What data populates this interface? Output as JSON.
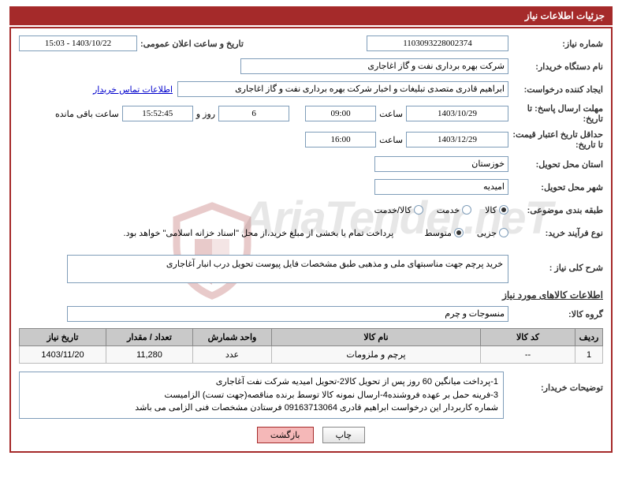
{
  "header": {
    "title": "جزئیات اطلاعات نیاز"
  },
  "labels": {
    "need_no": "شماره نیاز:",
    "announce_dt": "تاریخ و ساعت اعلان عمومی:",
    "org": "نام دستگاه خریدار:",
    "requester": "ایجاد کننده درخواست:",
    "deadline": "مهلت ارسال پاسخ: تا تاریخ:",
    "time_word": "ساعت",
    "days_and": "روز و",
    "remaining": "ساعت باقی مانده",
    "validity": "حداقل تاریخ اعتبار قیمت: تا تاریخ:",
    "province": "استان محل تحویل:",
    "city": "شهر محل تحویل:",
    "category": "طبقه بندی موضوعی:",
    "process": "نوع فرآیند خرید:",
    "need_desc": "شرح کلی نیاز :",
    "goods_group": "گروه کالا:",
    "buyer_notes": "توضیحات خریدار:",
    "contact": "اطلاعات تماس خریدار"
  },
  "fields": {
    "need_no": "1103093228002374",
    "announce_dt": "1403/10/22 - 15:03",
    "org": "شرکت بهره برداری نفت و گاز اغاجاری",
    "requester": "ابراهیم قادری متصدی تبلیغات و اخبار شرکت بهره برداری نفت و گاز اغاجاری",
    "deadline_date": "1403/10/29",
    "deadline_time": "09:00",
    "days_left": "6",
    "time_left": "15:52:45",
    "validity_date": "1403/12/29",
    "validity_time": "16:00",
    "province": "خوزستان",
    "city": "امیدیه",
    "process_note": "پرداخت تمام یا بخشی از مبلغ خرید،از محل \"اسناد خزانه اسلامی\" خواهد بود.",
    "need_desc": "خرید پرچم جهت مناسبتهای ملی  و مذهبی طبق مشخصات فایل پیوست تحویل درب انبار آغاجاری",
    "goods_group": "منسوجات و چرم",
    "buyer_notes_l1": "1-پرداخت میانگین 60 روز پس از تحویل کالا2-تحویل امیدیه شرکت نفت آغاجاری",
    "buyer_notes_l2": "3-فرینه حمل بر عهده فروشنده4-ارسال نمونه کالا توسط برنده مناقصه(جهت تست) الزامیست",
    "buyer_notes_l3": "شماره کاربردار این درخواست  ابراهیم قادری 09163713064 فرستادن مشخصات فنی الزامی می باشد"
  },
  "radios": {
    "cat": [
      "کالا",
      "خدمت",
      "کالا/خدمت"
    ],
    "cat_sel": 0,
    "proc": [
      "جزیی",
      "متوسط"
    ],
    "proc_sel": 1
  },
  "section_titles": {
    "goods_info": "اطلاعات کالاهای مورد نیاز"
  },
  "table": {
    "columns": [
      "ردیف",
      "کد کالا",
      "نام کالا",
      "واحد شمارش",
      "تعداد / مقدار",
      "تاریخ نیاز"
    ],
    "col_widths": [
      "35px",
      "120px",
      "auto",
      "100px",
      "110px",
      "110px"
    ],
    "rows": [
      [
        "1",
        "--",
        "پرچم و ملزومات",
        "عدد",
        "11,280",
        "1403/11/20"
      ]
    ]
  },
  "buttons": {
    "print": "چاپ",
    "back": "بازگشت"
  },
  "watermark": "AriaTender.neT"
}
